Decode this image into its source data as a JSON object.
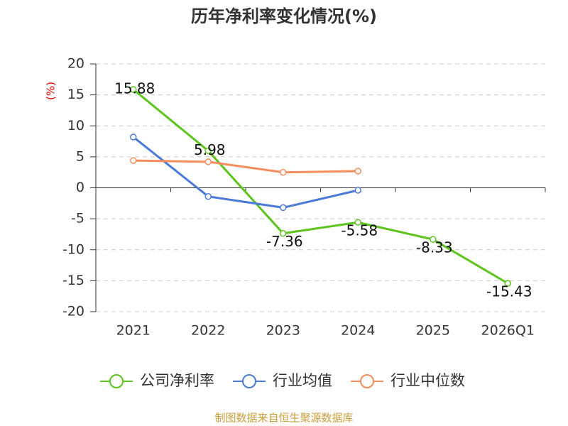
{
  "chart_data": {
    "type": "line",
    "title": "历年净利率变化情况(%)",
    "y_label": "(%)",
    "source": "制图数据来自恒生聚源数据库",
    "categories": [
      "2021",
      "2022",
      "2023",
      "2024",
      "2025",
      "2026Q1"
    ],
    "series": [
      {
        "name": "公司净利率",
        "color": "#5cc41c",
        "values": [
          15.88,
          5.98,
          -7.36,
          -5.58,
          -8.33,
          -15.43
        ],
        "show_labels": true
      },
      {
        "name": "行业均值",
        "color": "#4b7bd6",
        "values": [
          8.2,
          -1.4,
          -3.2,
          -0.4,
          null,
          null
        ]
      },
      {
        "name": "行业中位数",
        "color": "#f48c5c",
        "values": [
          4.4,
          4.2,
          2.5,
          2.7,
          null,
          null
        ]
      }
    ],
    "ylim": [
      -20,
      20
    ],
    "yticks": [
      -20,
      -15,
      -10,
      -5,
      0,
      5,
      10,
      15,
      20
    ],
    "grid": true
  }
}
